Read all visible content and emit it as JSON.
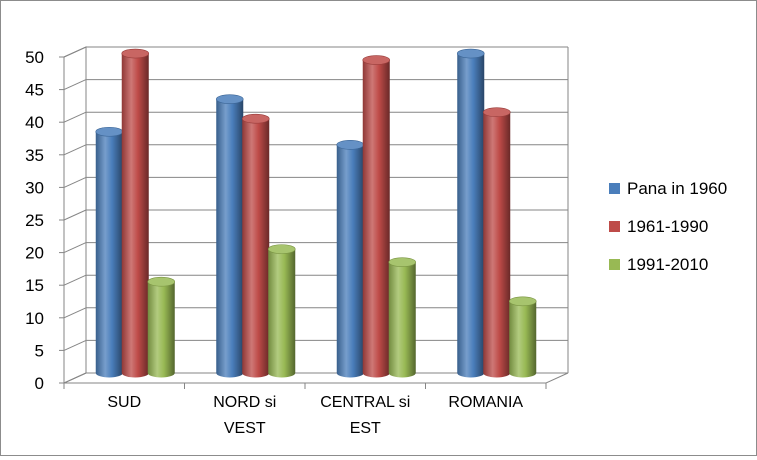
{
  "chart_data": {
    "type": "bar",
    "style": "3d-cylinder",
    "categories": [
      [
        "SUD"
      ],
      [
        "NORD si",
        "VEST"
      ],
      [
        "CENTRAL si",
        "EST"
      ],
      [
        "ROMANIA"
      ]
    ],
    "series": [
      {
        "name": "Pana in 1960",
        "color": "#4a7ebb",
        "values": [
          37,
          42,
          35,
          49
        ]
      },
      {
        "name": "1961-1990",
        "color": "#be4b48",
        "values": [
          49,
          39,
          48,
          40
        ]
      },
      {
        "name": "1991-2010",
        "color": "#98b954",
        "values": [
          14,
          19,
          17,
          11
        ]
      }
    ],
    "ylim": [
      0,
      50
    ],
    "yticks": [
      0,
      5,
      10,
      15,
      20,
      25,
      30,
      35,
      40,
      45,
      50
    ],
    "grid": true,
    "legend": "right"
  }
}
